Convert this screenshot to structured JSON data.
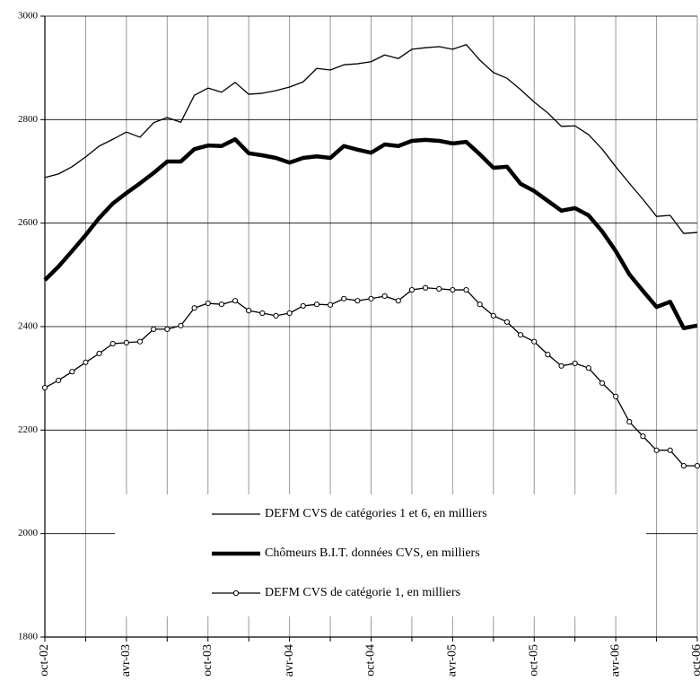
{
  "chart_data": {
    "type": "line",
    "categories": [
      "oct-02",
      null,
      null,
      null,
      null,
      null,
      "avr-03",
      null,
      null,
      null,
      null,
      null,
      "oct-03",
      null,
      null,
      null,
      null,
      null,
      "avr-04",
      null,
      null,
      null,
      null,
      null,
      "oct-04",
      null,
      null,
      null,
      null,
      null,
      "avr-05",
      null,
      null,
      null,
      null,
      null,
      "oct-05",
      null,
      null,
      null,
      null,
      null,
      "avr-06",
      null,
      null,
      null,
      null,
      null,
      "oct-06"
    ],
    "series": [
      {
        "name": "DEFM CVS de catégories 1 et 6, en milliers",
        "color": "#000000",
        "width": 1.3,
        "marker": false,
        "values": [
          2688,
          2695,
          2709,
          2728,
          2749,
          2762,
          2776,
          2766,
          2794,
          2804,
          2795,
          2847,
          2861,
          2853,
          2872,
          2849,
          2851,
          2856,
          2863,
          2873,
          2899,
          2896,
          2906,
          2908,
          2912,
          2925,
          2918,
          2936,
          2939,
          2941,
          2936,
          2945,
          2915,
          2891,
          2880,
          2858,
          2834,
          2813,
          2787,
          2788,
          2771,
          2743,
          2709,
          2677,
          2646,
          2613,
          2615,
          2580,
          2582
        ]
      },
      {
        "name": "Chômeurs B.I.T. données CVS, en milliers",
        "color": "#000000",
        "width": 4.5,
        "marker": false,
        "values": [
          2490,
          2516,
          2546,
          2577,
          2610,
          2638,
          2658,
          2677,
          2697,
          2719,
          2719,
          2743,
          2750,
          2749,
          2762,
          2735,
          2731,
          2726,
          2717,
          2726,
          2729,
          2726,
          2749,
          2742,
          2736,
          2752,
          2749,
          2759,
          2761,
          2759,
          2754,
          2757,
          2733,
          2707,
          2709,
          2676,
          2662,
          2643,
          2624,
          2629,
          2615,
          2584,
          2546,
          2501,
          2469,
          2438,
          2448,
          2397,
          2402
        ]
      },
      {
        "name": "DEFM CVS de catégorie 1, en milliers",
        "color": "#000000",
        "width": 1.3,
        "marker": true,
        "values": [
          2282,
          2296,
          2313,
          2331,
          2348,
          2367,
          2369,
          2371,
          2395,
          2395,
          2402,
          2436,
          2445,
          2443,
          2450,
          2431,
          2426,
          2421,
          2426,
          2440,
          2443,
          2442,
          2454,
          2450,
          2454,
          2459,
          2450,
          2471,
          2475,
          2473,
          2471,
          2471,
          2443,
          2421,
          2409,
          2384,
          2371,
          2346,
          2324,
          2329,
          2320,
          2291,
          2265,
          2216,
          2188,
          2161,
          2161,
          2131,
          2131
        ]
      }
    ],
    "ylim": [
      1800,
      3000
    ],
    "yticks": [
      1800,
      2000,
      2200,
      2400,
      2600,
      2800,
      3000
    ],
    "grid": true
  }
}
